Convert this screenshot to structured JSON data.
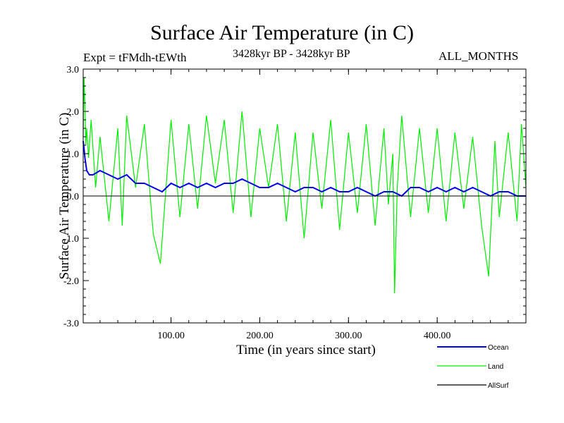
{
  "header": {
    "title": "Surface Air Temperature (in C)",
    "expt": "Expt = tFMdh-tEWth",
    "period": "3428kyr BP - 3428kyr BP",
    "months": "ALL_MONTHS"
  },
  "chart_data": {
    "type": "line",
    "title": "Surface Air Temperature (in C)",
    "xlabel": "Time (in years since start)",
    "ylabel": "Surface Air Temperature (in C)",
    "xlim": [
      1,
      500
    ],
    "ylim": [
      -3.0,
      3.0
    ],
    "x_ticks": [
      100,
      200,
      300,
      400
    ],
    "x_tick_labels": [
      "100.00",
      "200.00",
      "300.00",
      "400.00"
    ],
    "y_ticks": [
      3.0,
      2.0,
      1.0,
      0.0,
      -1.0,
      -2.0,
      -3.0
    ],
    "y_tick_labels": [
      "3.0",
      "2.0",
      "1.0",
      "0.0",
      "-1.0",
      "-2.0",
      "-3.0"
    ],
    "legend_position": "bottom-right",
    "series": [
      {
        "name": "Land",
        "color": "#00ee00",
        "x": [
          1,
          2,
          3,
          4,
          5,
          7,
          10,
          15,
          20,
          30,
          40,
          45,
          50,
          60,
          70,
          80,
          88,
          100,
          110,
          120,
          130,
          140,
          150,
          160,
          170,
          180,
          190,
          200,
          210,
          220,
          230,
          240,
          250,
          260,
          270,
          280,
          290,
          300,
          310,
          320,
          330,
          340,
          345,
          350,
          352,
          355,
          360,
          370,
          380,
          390,
          400,
          410,
          420,
          430,
          440,
          450,
          458,
          465,
          470,
          480,
          490,
          495,
          500
        ],
        "values": [
          1.4,
          2.8,
          2.1,
          1.2,
          1.6,
          0.9,
          1.8,
          0.2,
          1.4,
          -0.6,
          1.6,
          -0.7,
          1.9,
          0.2,
          1.7,
          -0.9,
          -1.6,
          1.8,
          -0.5,
          1.7,
          -0.3,
          1.9,
          0.3,
          1.8,
          -0.4,
          2.0,
          -0.5,
          1.6,
          0.2,
          1.7,
          -0.6,
          1.5,
          -1.0,
          1.5,
          -0.3,
          1.8,
          -0.8,
          1.5,
          -0.4,
          1.7,
          -0.7,
          1.6,
          -0.2,
          1.0,
          -2.3,
          0.2,
          1.9,
          -0.5,
          1.6,
          -0.4,
          1.6,
          -0.6,
          1.5,
          -0.3,
          1.4,
          -0.7,
          -1.9,
          1.3,
          -0.5,
          1.5,
          -0.6,
          1.7,
          0.2
        ]
      },
      {
        "name": "Ocean",
        "color": "#0000ee",
        "x": [
          1,
          2,
          3,
          5,
          8,
          12,
          20,
          30,
          40,
          50,
          60,
          70,
          80,
          90,
          100,
          110,
          120,
          130,
          140,
          150,
          160,
          170,
          180,
          190,
          200,
          210,
          220,
          230,
          240,
          250,
          260,
          270,
          280,
          290,
          300,
          310,
          320,
          330,
          340,
          350,
          360,
          370,
          380,
          390,
          400,
          410,
          420,
          430,
          440,
          450,
          460,
          470,
          480,
          490,
          500
        ],
        "values": [
          1.3,
          1.1,
          0.9,
          0.6,
          0.5,
          0.5,
          0.6,
          0.5,
          0.4,
          0.5,
          0.3,
          0.3,
          0.2,
          0.1,
          0.3,
          0.2,
          0.3,
          0.2,
          0.3,
          0.2,
          0.3,
          0.3,
          0.4,
          0.3,
          0.2,
          0.2,
          0.3,
          0.2,
          0.1,
          0.2,
          0.2,
          0.1,
          0.2,
          0.1,
          0.1,
          0.2,
          0.1,
          0.0,
          0.1,
          0.1,
          0.0,
          0.2,
          0.2,
          0.1,
          0.2,
          0.1,
          0.2,
          0.1,
          0.2,
          0.1,
          0.0,
          0.1,
          0.1,
          0.0,
          0.0
        ]
      },
      {
        "name": "AllSurf",
        "color": "#000000",
        "x": [
          1,
          500
        ],
        "values": [
          0.0,
          0.0
        ]
      }
    ]
  }
}
